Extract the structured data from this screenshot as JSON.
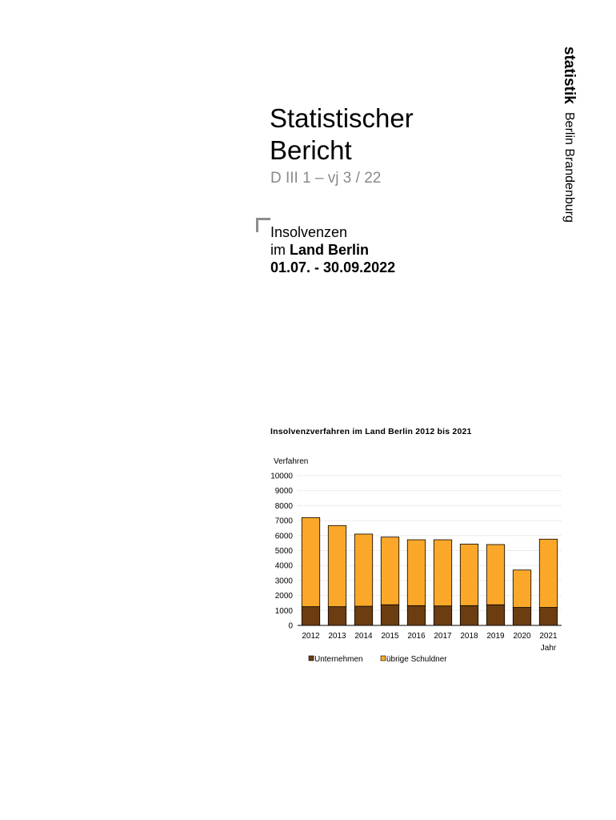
{
  "brand": {
    "name": "statistik",
    "region": "Berlin Brandenburg"
  },
  "report": {
    "title_line1": "Statistischer",
    "title_line2": "Bericht",
    "code": "D III 1 – vj 3 / 22"
  },
  "subject": {
    "line1": "Insolvenzen",
    "line2_prefix": "im ",
    "line2_bold": "Land Berlin",
    "period": "01.07. - 30.09.2022"
  },
  "chart_data": {
    "type": "bar",
    "stacked": true,
    "title": "Insolvenzverfahren im Land Berlin 2012 bis 2021",
    "ylabel": "Verfahren",
    "xlabel": "Jahr",
    "ylim": [
      0,
      10000
    ],
    "yticks": [
      0,
      1000,
      2000,
      3000,
      4000,
      5000,
      6000,
      7000,
      8000,
      9000,
      10000
    ],
    "grid": true,
    "legend_position": "bottom",
    "categories": [
      "2012",
      "2013",
      "2014",
      "2015",
      "2016",
      "2017",
      "2018",
      "2019",
      "2020",
      "2021"
    ],
    "series": [
      {
        "name": "Unternehmen",
        "color": "#6b3d10",
        "values": [
          1250,
          1250,
          1280,
          1380,
          1320,
          1300,
          1320,
          1380,
          1200,
          1200
        ]
      },
      {
        "name": "übrige Schuldner",
        "color": "#fba82a",
        "values": [
          5950,
          5420,
          4820,
          4520,
          4400,
          4420,
          4110,
          4020,
          2500,
          4560
        ]
      }
    ]
  }
}
